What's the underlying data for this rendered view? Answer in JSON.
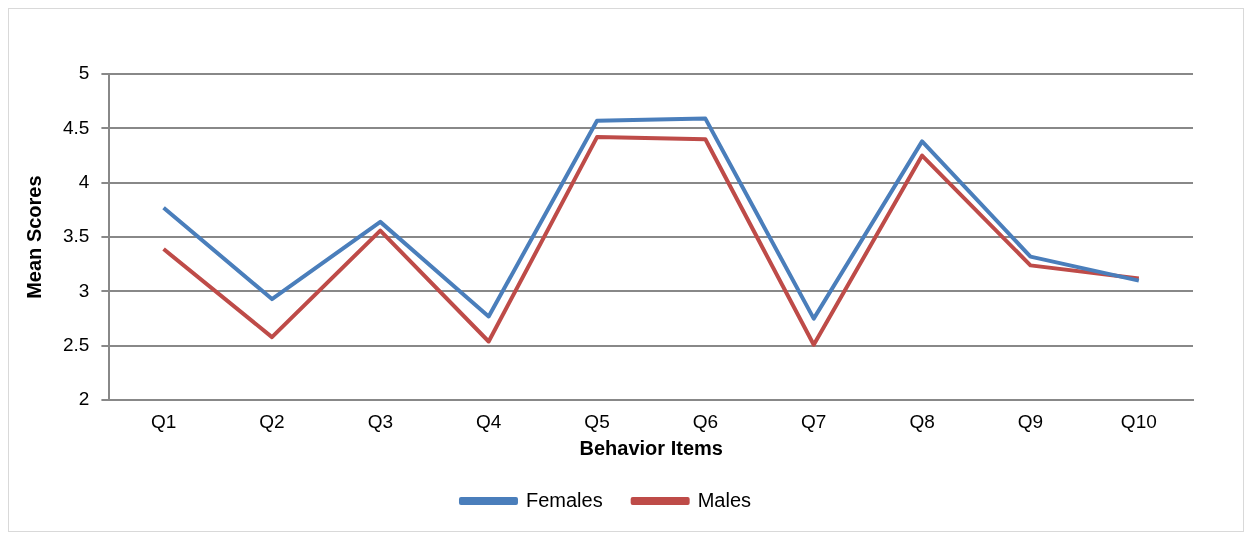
{
  "chart_data": {
    "type": "line",
    "xlabel": "Behavior Items",
    "ylabel": "Mean Scores",
    "categories": [
      "Q1",
      "Q2",
      "Q3",
      "Q4",
      "Q5",
      "Q6",
      "Q7",
      "Q8",
      "Q9",
      "Q10"
    ],
    "series": [
      {
        "name": "Females",
        "color": "#4a7ebb",
        "values": [
          3.77,
          2.93,
          3.64,
          2.77,
          4.57,
          4.59,
          2.75,
          4.38,
          3.32,
          3.1
        ]
      },
      {
        "name": "Males",
        "color": "#be4b48",
        "values": [
          3.39,
          2.58,
          3.56,
          2.54,
          4.42,
          4.4,
          2.51,
          4.25,
          3.24,
          3.12
        ]
      }
    ],
    "ylim": [
      2,
      5
    ],
    "yticks": [
      2,
      2.5,
      3,
      3.5,
      4,
      4.5,
      5
    ],
    "grid": "y",
    "legend": "bottom",
    "marker": "none",
    "line_style": "solid"
  }
}
